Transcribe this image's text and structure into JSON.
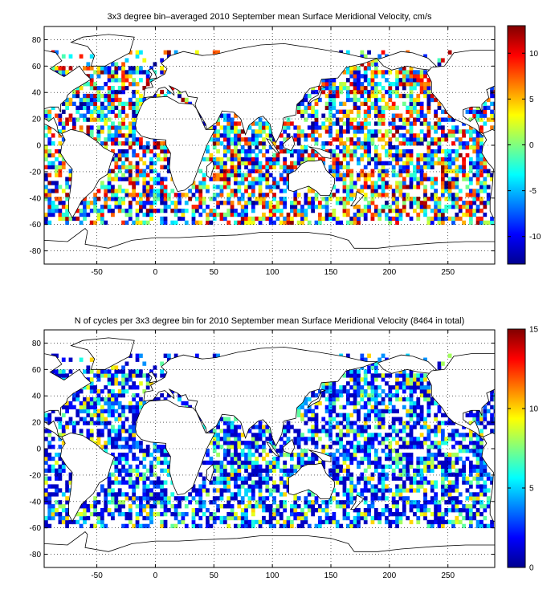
{
  "chart_data": [
    {
      "type": "heatmap",
      "title": "3x3 degree bin–averaged 2010 September mean Surface Meridional Velocity, cm/s",
      "xlabel": "",
      "ylabel": "",
      "xlim": [
        -95,
        290
      ],
      "ylim": [
        -90,
        90
      ],
      "xticks": [
        -50,
        0,
        50,
        100,
        150,
        200,
        250
      ],
      "yticks": [
        80,
        60,
        40,
        20,
        0,
        -20,
        -40,
        -60,
        -80
      ],
      "bin_size_deg": 3,
      "grid": true,
      "colormap": "jet",
      "colorbar": {
        "min": -13,
        "max": 13,
        "ticks": [
          10,
          5,
          0,
          -5,
          -10
        ],
        "placement": "right"
      }
    },
    {
      "type": "heatmap",
      "title": "N of cycles per 3x3 degree bin for 2010 September mean Surface Meridional Velocity (8464 in total)",
      "xlabel": "",
      "ylabel": "",
      "xlim": [
        -95,
        290
      ],
      "ylim": [
        -90,
        90
      ],
      "xticks": [
        -50,
        0,
        50,
        100,
        150,
        200,
        250
      ],
      "yticks": [
        80,
        60,
        40,
        20,
        0,
        -20,
        -40,
        -60,
        -80
      ],
      "bin_size_deg": 3,
      "grid": true,
      "colormap": "jet",
      "colorbar": {
        "min": 0,
        "max": 15,
        "ticks": [
          15,
          10,
          5,
          0
        ],
        "placement": "right"
      }
    }
  ]
}
